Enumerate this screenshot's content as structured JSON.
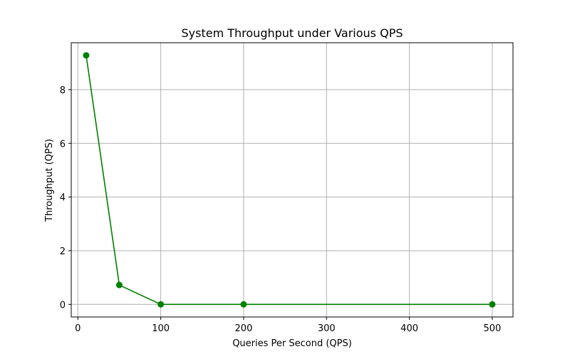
{
  "chart_data": {
    "type": "line",
    "title": "System Throughput under Various QPS",
    "xlabel": "Queries Per Second (QPS)",
    "ylabel": "Throughput (QPS)",
    "xlim": [
      -8,
      525
    ],
    "ylim": [
      -0.47,
      9.75
    ],
    "xticks": [
      0,
      100,
      200,
      300,
      400,
      500
    ],
    "yticks": [
      0,
      2,
      4,
      6,
      8
    ],
    "grid": true,
    "series": [
      {
        "x": [
          10,
          50,
          100,
          200,
          500
        ],
        "y": [
          9.28,
          0.72,
          0.0,
          0.0,
          0.0
        ],
        "color": "#008000",
        "marker": "circle"
      }
    ]
  }
}
